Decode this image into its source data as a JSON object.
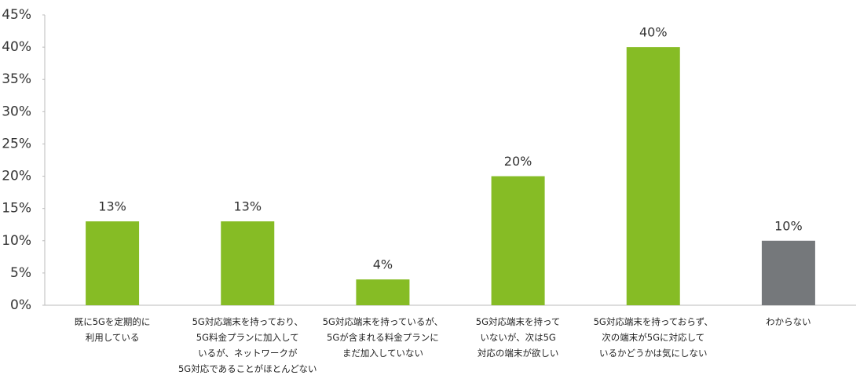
{
  "chart_data": {
    "type": "bar",
    "categories": [
      "既に5Gを定期的に\n利用している",
      "5G対応端末を持っており、\n5G料金プランに加入して\nいるが、ネットワークが\n5G対応であることがほとんどない",
      "5G対応端末を持っているが、\n5Gが含まれる料金プランに\nまだ加入していない",
      "5G対応端末を持って\nいないが、次は5G\n対応の端末が欲しい",
      "5G対応端末を持っておらず、\n次の端末が5Gに対応して\nいるかどうかは気にしない",
      "わからない"
    ],
    "values": [
      13,
      13,
      4,
      20,
      40,
      10
    ],
    "value_labels": [
      "13%",
      "13%",
      "4%",
      "20%",
      "40%",
      "10%"
    ],
    "colors": [
      "#86bc25",
      "#86bc25",
      "#86bc25",
      "#86bc25",
      "#86bc25",
      "#75787b"
    ],
    "ylim": [
      0,
      45
    ],
    "yticks": [
      {
        "value": 0,
        "label": "0%"
      },
      {
        "value": 5,
        "label": "5%"
      },
      {
        "value": 10,
        "label": "10%"
      },
      {
        "value": 15,
        "label": "15%"
      },
      {
        "value": 20,
        "label": "20%"
      },
      {
        "value": 25,
        "label": "25%"
      },
      {
        "value": 30,
        "label": "30%"
      },
      {
        "value": 35,
        "label": "35%"
      },
      {
        "value": 40,
        "label": "40%"
      },
      {
        "value": 45,
        "label": "45%"
      }
    ],
    "grid": false
  }
}
